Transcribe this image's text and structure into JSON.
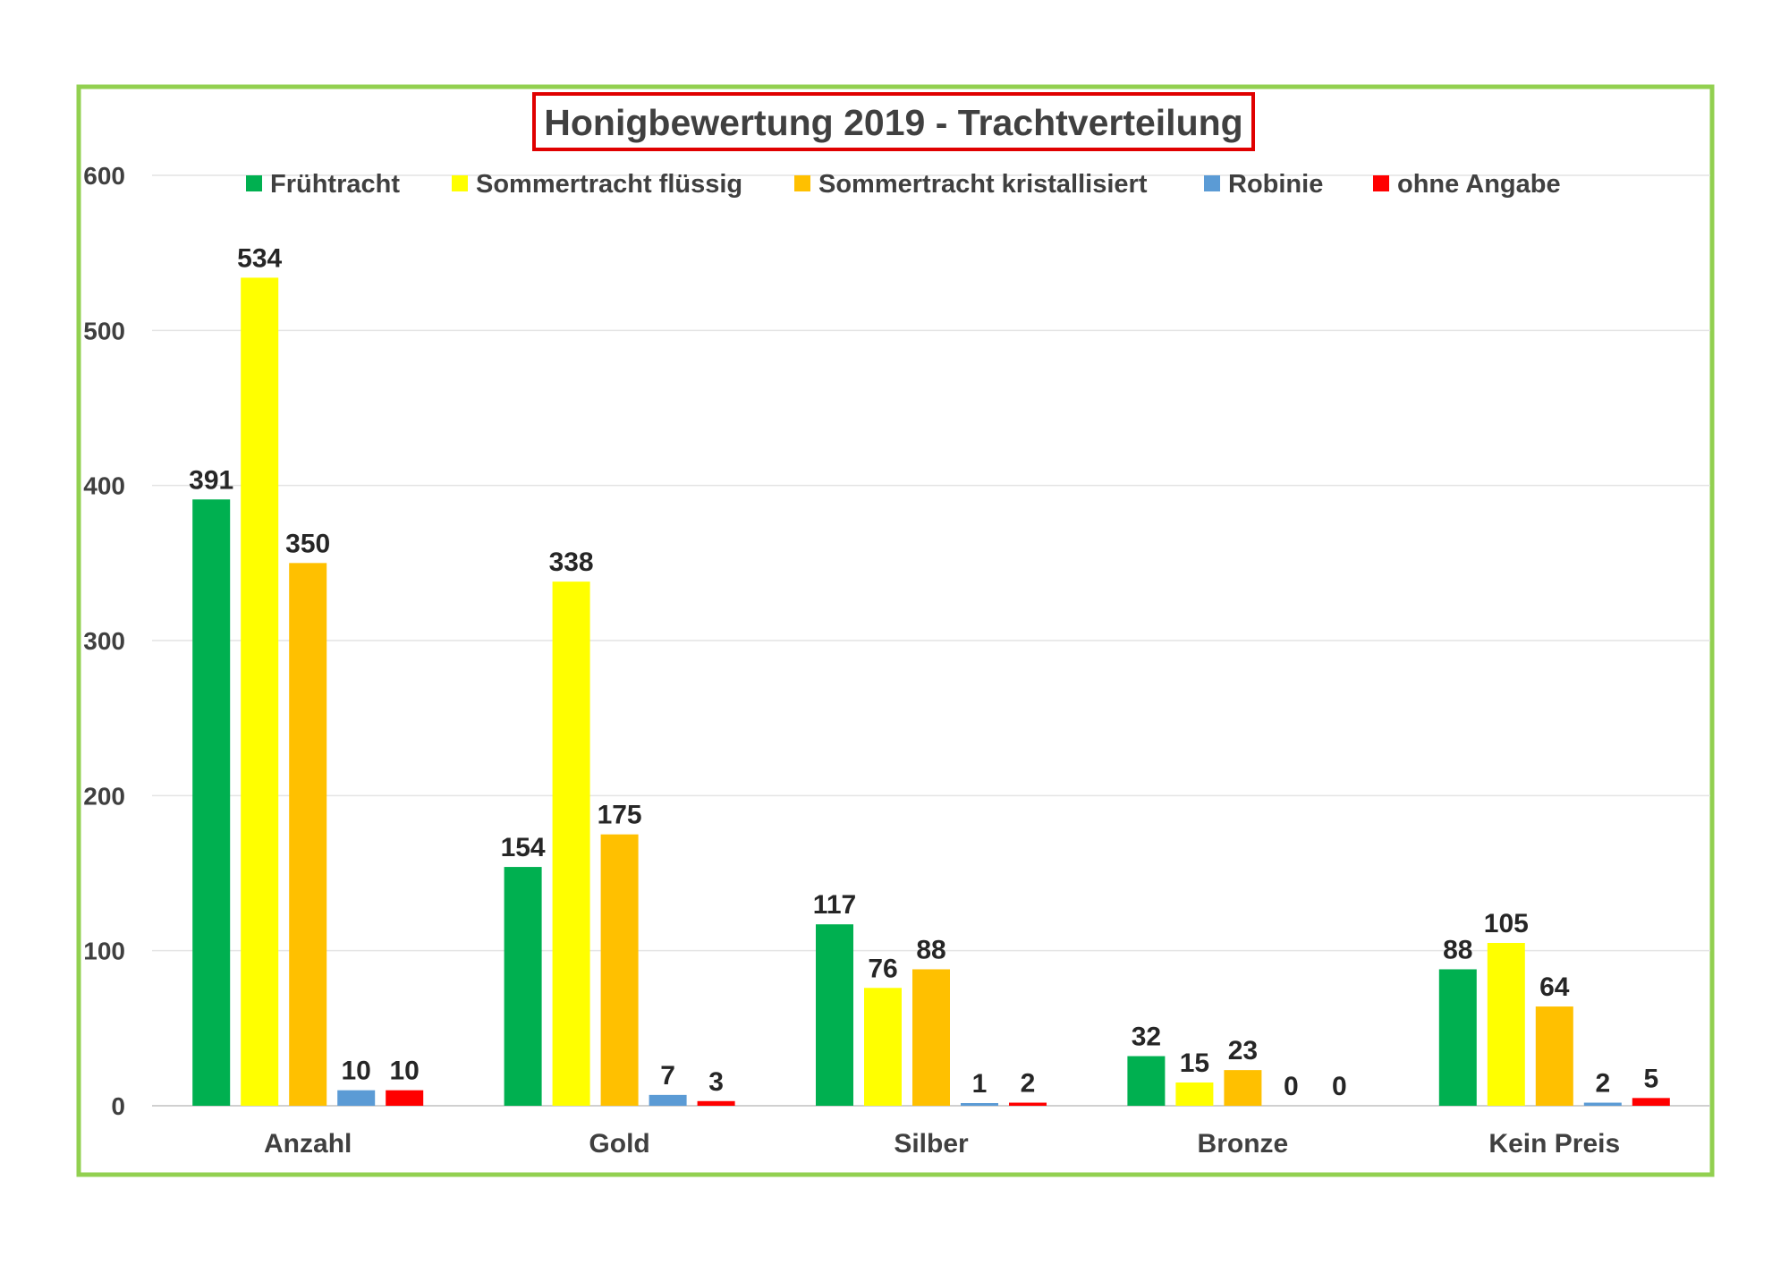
{
  "chart_data": {
    "type": "bar",
    "title": "Honigbewertung 2019 - Trachtverteilung",
    "categories": [
      "Anzahl",
      "Gold",
      "Silber",
      "Bronze",
      "Kein Preis"
    ],
    "series": [
      {
        "name": "Frühtracht",
        "color": "#00b050",
        "values": [
          391,
          154,
          117,
          32,
          88
        ]
      },
      {
        "name": "Sommertracht flüssig",
        "color": "#ffff00",
        "values": [
          534,
          338,
          76,
          15,
          105
        ]
      },
      {
        "name": "Sommertracht kristallisiert",
        "color": "#ffc000",
        "values": [
          350,
          175,
          88,
          23,
          64
        ]
      },
      {
        "name": "Robinie",
        "color": "#5b9bd5",
        "values": [
          10,
          7,
          1,
          0,
          2
        ]
      },
      {
        "name": "ohne Angabe",
        "color": "#ff0000",
        "values": [
          10,
          3,
          2,
          0,
          5
        ]
      }
    ],
    "ylim": [
      0,
      600
    ],
    "yticks": [
      0,
      100,
      200,
      300,
      400,
      500,
      600
    ],
    "grid": true,
    "legend": "top",
    "frame_color": "#92d050",
    "title_box_color": "#e00000"
  }
}
